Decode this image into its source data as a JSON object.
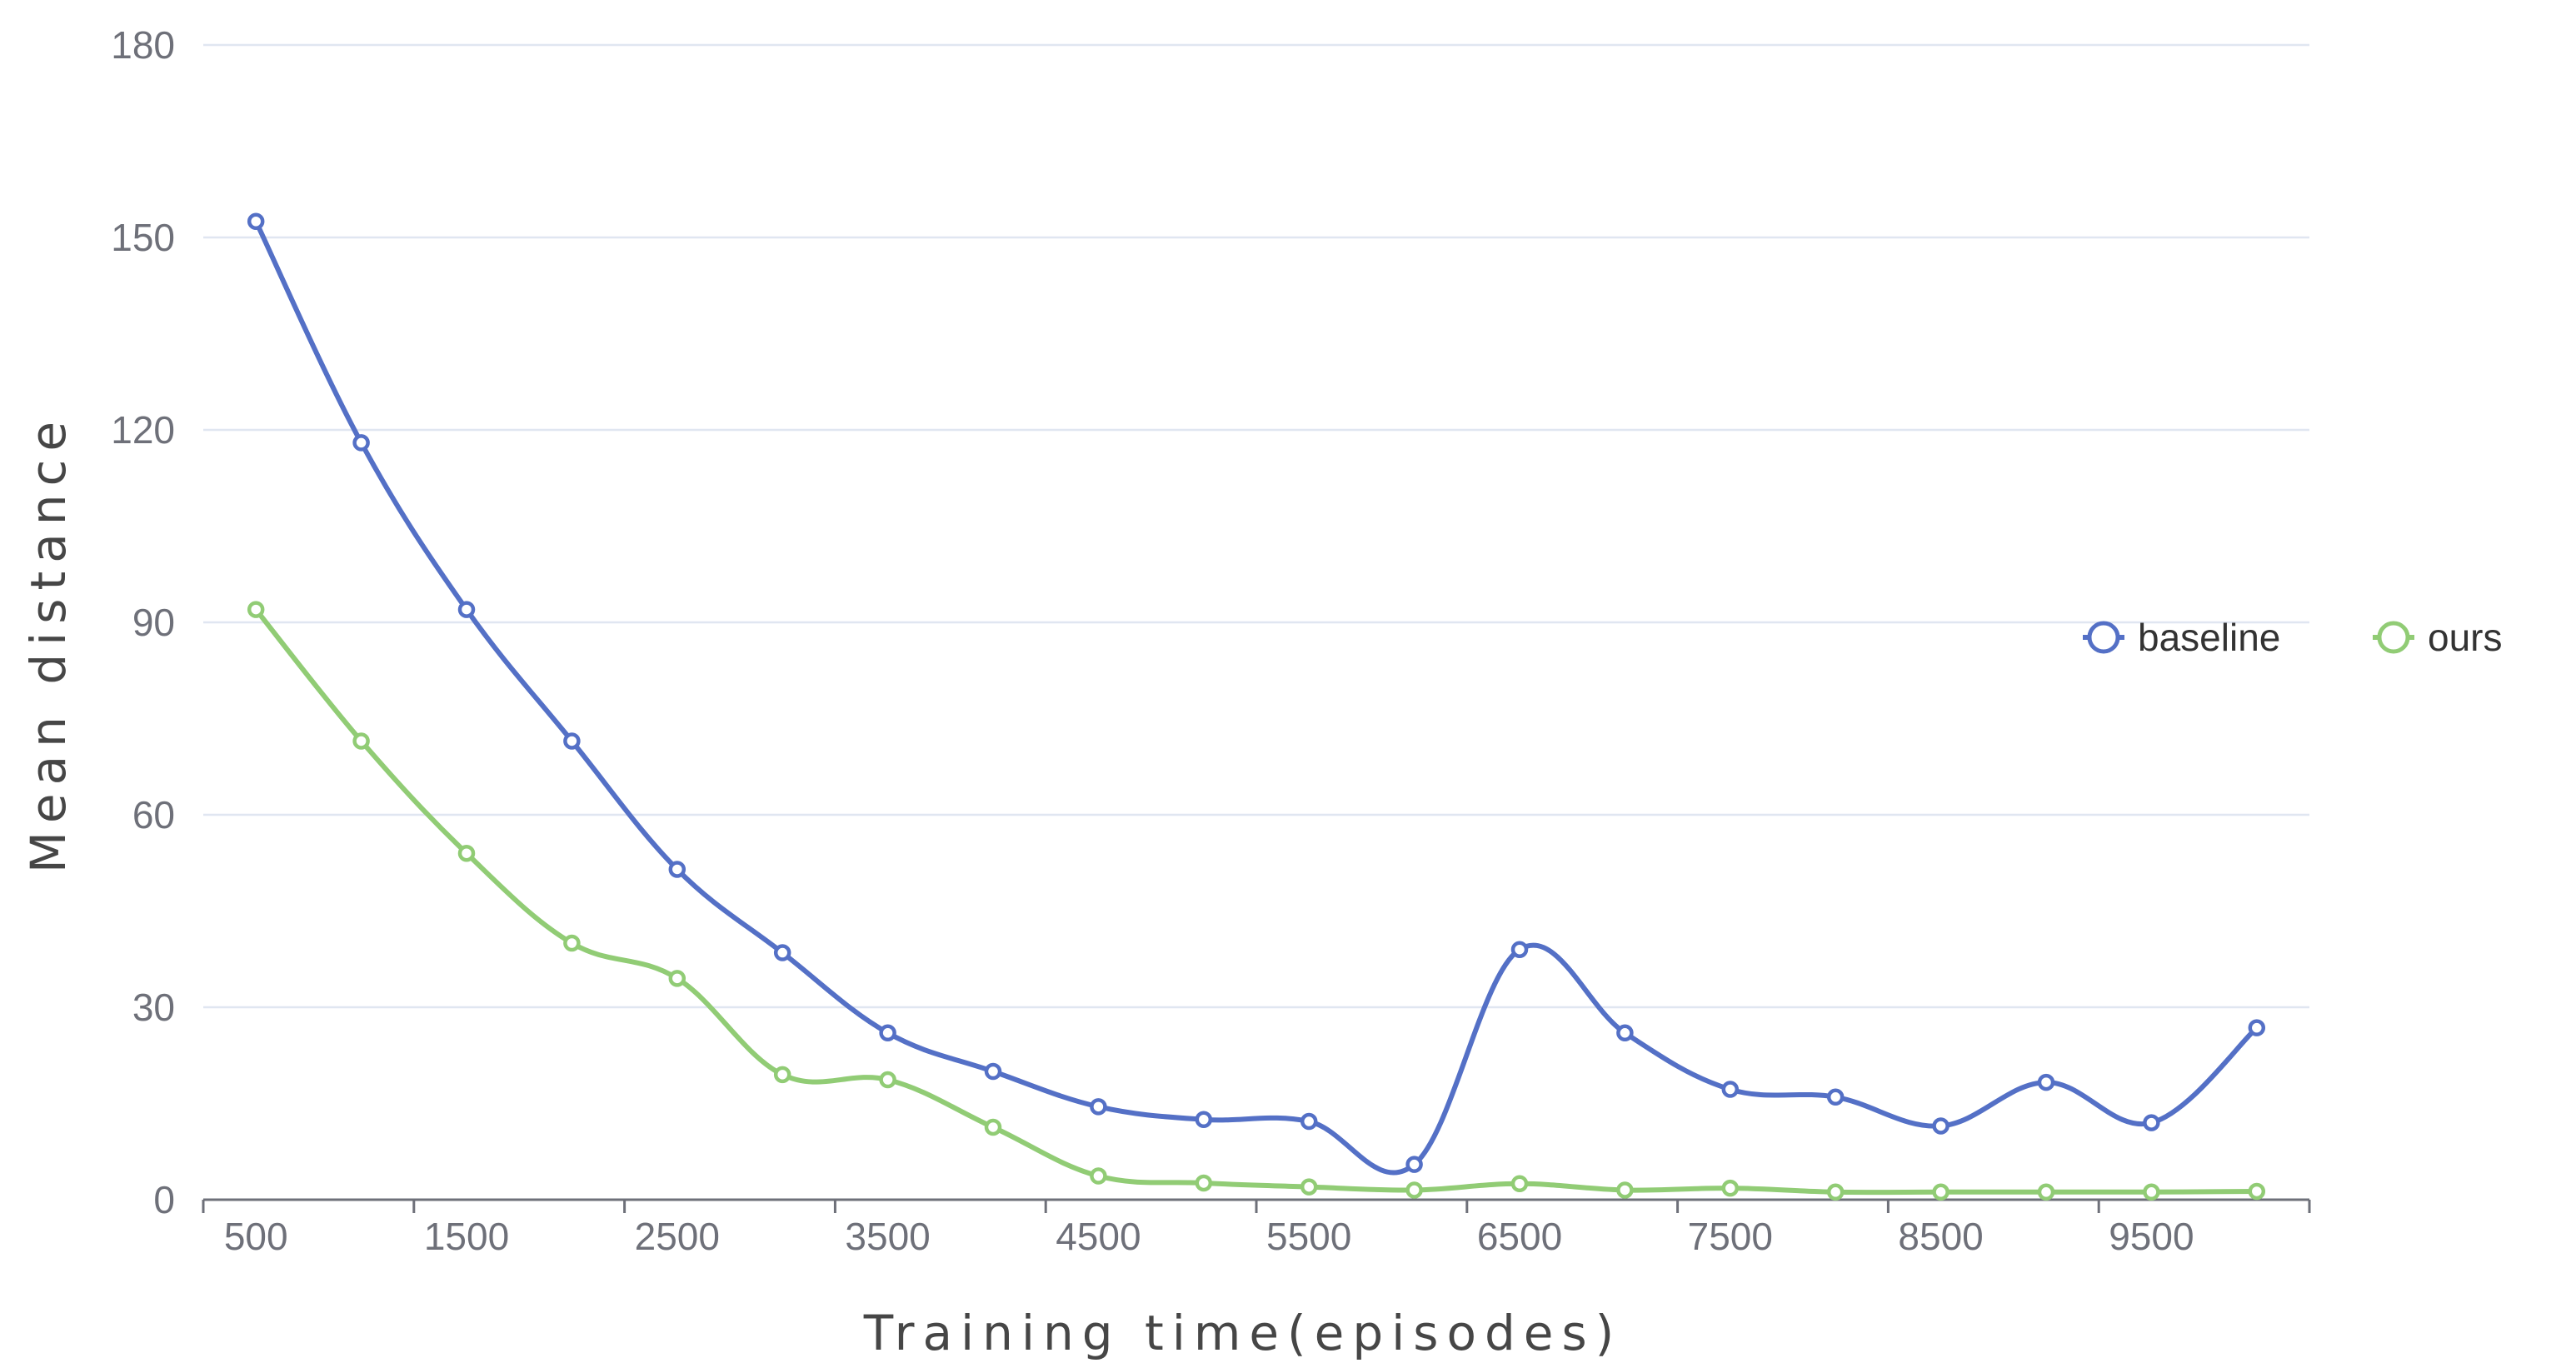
{
  "chart_data": {
    "type": "line",
    "xlabel": "Training time(episodes)",
    "ylabel": "Mean distance",
    "x": [
      500,
      1000,
      1500,
      2000,
      2500,
      3000,
      3500,
      4000,
      4500,
      5000,
      5500,
      6000,
      6500,
      7000,
      7500,
      8000,
      8500,
      9000,
      9500,
      10000
    ],
    "xticks": [
      500,
      1500,
      2500,
      3500,
      4500,
      5500,
      6500,
      7500,
      8500,
      9500
    ],
    "yticks": [
      0,
      30,
      60,
      90,
      120,
      150,
      180
    ],
    "ylim": [
      0,
      180
    ],
    "grid": true,
    "legend_position": "right",
    "series": [
      {
        "name": "baseline",
        "color": "#5470c6",
        "values": [
          152.5,
          118,
          92,
          71.5,
          51.5,
          38.5,
          26,
          20,
          14.5,
          12.5,
          12.2,
          5.5,
          39,
          26,
          17.2,
          16,
          11.5,
          18.3,
          12,
          26.8
        ]
      },
      {
        "name": "ours",
        "color": "#91cc75",
        "values": [
          92,
          71.5,
          54,
          40,
          34.5,
          19.5,
          18.7,
          11.3,
          3.7,
          2.6,
          2,
          1.5,
          2.5,
          1.5,
          1.8,
          1.2,
          1.2,
          1.2,
          1.2,
          1.3
        ]
      }
    ]
  }
}
